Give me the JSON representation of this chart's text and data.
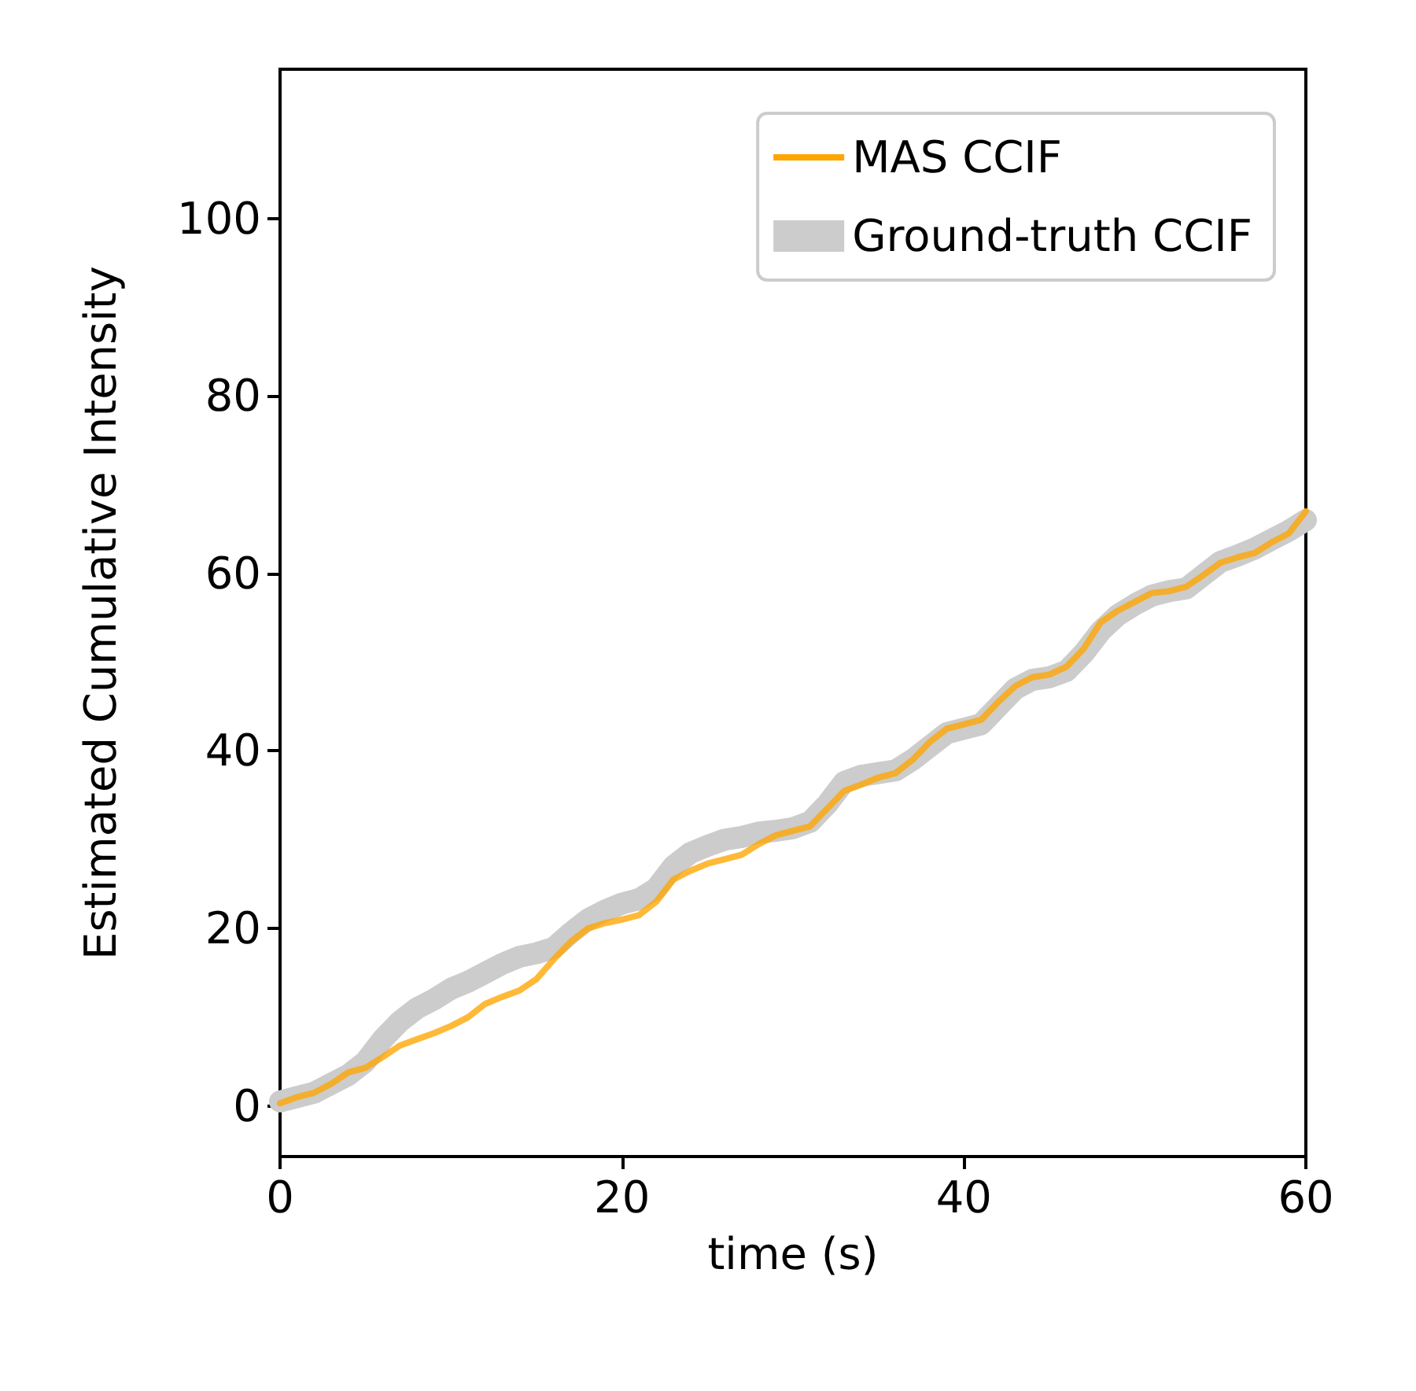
{
  "chart_data": {
    "type": "line",
    "xlabel": "time (s)",
    "ylabel": "Estimated Cumulative Intensity",
    "xlim": [
      0,
      60
    ],
    "xticks": [
      0,
      20,
      40,
      60
    ],
    "ylim": [
      -5.7,
      116.8
    ],
    "yticks": [
      0,
      20,
      40,
      60,
      80,
      100
    ],
    "grid": false,
    "legend": "top right",
    "line_style": "solid",
    "marker": "none",
    "x": [
      0,
      1,
      2,
      3,
      4,
      5,
      6,
      7,
      8,
      9,
      10,
      11,
      12,
      13,
      14,
      15,
      16,
      17,
      18,
      19,
      20,
      21,
      22,
      23,
      24,
      25,
      26,
      27,
      28,
      29,
      30,
      31,
      32,
      33,
      34,
      35,
      36,
      37,
      38,
      39,
      40,
      41,
      42,
      43,
      44,
      45,
      46,
      47,
      48,
      49,
      50,
      51,
      52,
      53,
      54,
      55,
      56,
      57,
      58,
      59,
      60
    ],
    "series": [
      {
        "name": "Ground-truth CCIF",
        "color": "#cccccc",
        "values": [
          0.5,
          1,
          1.5,
          2.5,
          3.5,
          5,
          7.5,
          9.5,
          11,
          12,
          13.2,
          14,
          15,
          16,
          16.8,
          17.2,
          17.8,
          19.5,
          21,
          22,
          22.8,
          23.3,
          24.5,
          27,
          28.5,
          29.3,
          30,
          30.3,
          30.8,
          31,
          31.3,
          32,
          34,
          36.5,
          37.2,
          37.5,
          37.8,
          39,
          40.5,
          42,
          42.5,
          43,
          45,
          47,
          48,
          48.3,
          49,
          51,
          53.5,
          55.3,
          56.5,
          57.5,
          58,
          58.3,
          59.8,
          61.3,
          62,
          62.8,
          63.8,
          64.8,
          66
        ]
      },
      {
        "name": "MAS CCIF",
        "color": "#ffa500",
        "values": [
          0.3,
          1,
          1.5,
          2.5,
          3.8,
          4.3,
          5.5,
          6.8,
          7.5,
          8.2,
          9,
          10,
          11.5,
          12.3,
          13,
          14.3,
          16.5,
          18.5,
          20,
          20.6,
          21,
          21.5,
          23,
          25.5,
          26.5,
          27.3,
          27.8,
          28.3,
          29.5,
          30.5,
          31,
          31.5,
          33.5,
          35.5,
          36.2,
          37,
          37.5,
          39,
          41,
          42.5,
          43,
          43.5,
          45.5,
          47.3,
          48.3,
          48.6,
          49.5,
          51.5,
          54.5,
          55.8,
          56.8,
          57.8,
          58,
          58.5,
          59.8,
          61.2,
          61.8,
          62.3,
          63.5,
          64.5,
          67
        ]
      }
    ]
  }
}
